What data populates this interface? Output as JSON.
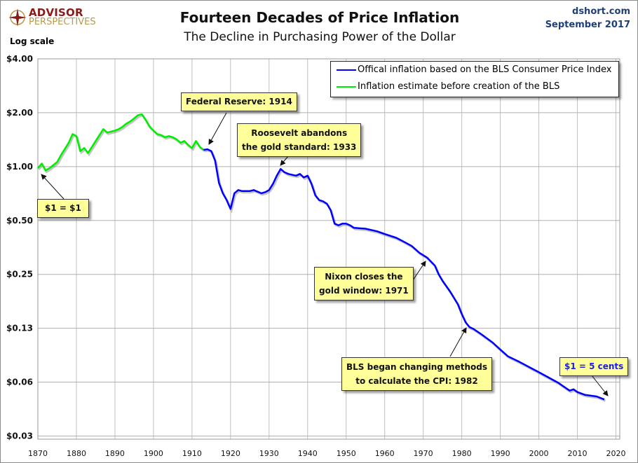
{
  "header": {
    "title": "Fourteen Decades of Price Inflation",
    "subtitle": "The Decline in Purchasing Power of the Dollar",
    "source": "dshort.com",
    "date": "September 2017",
    "logo_line1": "ADVISOR",
    "logo_line2": "PERSPECTIVES",
    "scale_note": "Log scale"
  },
  "chart_data": {
    "type": "line",
    "title": "Fourteen Decades of Price Inflation",
    "subtitle": "The Decline in Purchasing Power of the Dollar",
    "xlabel": "",
    "ylabel": "",
    "y_scale": "log",
    "xlim": [
      1870,
      2021
    ],
    "ylim": [
      0.03,
      4.0
    ],
    "x_ticks": [
      1870,
      1880,
      1890,
      1900,
      1910,
      1920,
      1930,
      1940,
      1950,
      1960,
      1970,
      1980,
      1990,
      2000,
      2010,
      2020
    ],
    "y_ticks": [
      {
        "value": 4,
        "label": "$4.00"
      },
      {
        "value": 2,
        "label": "$2.00"
      },
      {
        "value": 1,
        "label": "$1.00"
      },
      {
        "value": 0.5,
        "label": "$0.50"
      },
      {
        "value": 0.25,
        "label": "$0.25"
      },
      {
        "value": 0.125,
        "label": "$0.13"
      },
      {
        "value": 0.0625,
        "label": "$0.06"
      },
      {
        "value": 0.03125,
        "label": "$0.03"
      }
    ],
    "grid": true,
    "legend_position": "top-right",
    "series": [
      {
        "name": "Offical inflation based on the BLS Consumer Price Index",
        "color": "#0000ff",
        "x": [
          1913,
          1914,
          1915,
          1916,
          1917,
          1918,
          1919,
          1920,
          1921,
          1922,
          1923,
          1925,
          1926,
          1928,
          1929,
          1930,
          1931,
          1932,
          1933,
          1934,
          1935,
          1937,
          1938,
          1939,
          1940,
          1941,
          1942,
          1943,
          1944,
          1945,
          1946,
          1947,
          1948,
          1949,
          1950,
          1951,
          1952,
          1955,
          1958,
          1960,
          1963,
          1965,
          1967,
          1969,
          1971,
          1973,
          1974,
          1975,
          1977,
          1979,
          1980,
          1981,
          1982,
          1983,
          1985,
          1988,
          1990,
          1992,
          1995,
          2000,
          2005,
          2008,
          2009,
          2010,
          2012,
          2015,
          2017
        ],
        "y": [
          1.24,
          1.25,
          1.22,
          1.08,
          0.81,
          0.71,
          0.65,
          0.58,
          0.71,
          0.74,
          0.73,
          0.73,
          0.74,
          0.71,
          0.72,
          0.74,
          0.8,
          0.89,
          0.97,
          0.93,
          0.91,
          0.89,
          0.91,
          0.87,
          0.89,
          0.8,
          0.69,
          0.65,
          0.64,
          0.62,
          0.57,
          0.48,
          0.47,
          0.48,
          0.48,
          0.47,
          0.455,
          0.45,
          0.435,
          0.42,
          0.4,
          0.38,
          0.36,
          0.33,
          0.31,
          0.28,
          0.25,
          0.23,
          0.2,
          0.17,
          0.15,
          0.135,
          0.127,
          0.124,
          0.116,
          0.104,
          0.095,
          0.087,
          0.081,
          0.071,
          0.062,
          0.056,
          0.057,
          0.055,
          0.053,
          0.052,
          0.05
        ]
      },
      {
        "name": "Inflation estimate before creation of the BLS",
        "color": "#00ee00",
        "x": [
          1870,
          1871,
          1872,
          1873,
          1875,
          1876,
          1878,
          1879,
          1880,
          1881,
          1882,
          1883,
          1885,
          1887,
          1888,
          1890,
          1891,
          1892,
          1893,
          1894,
          1895,
          1896,
          1897,
          1898,
          1899,
          1900,
          1901,
          1902,
          1903,
          1904,
          1905,
          1906,
          1907,
          1908,
          1909,
          1910,
          1911,
          1912,
          1913
        ],
        "y": [
          0.98,
          1.04,
          0.95,
          0.98,
          1.06,
          1.16,
          1.36,
          1.52,
          1.48,
          1.22,
          1.27,
          1.19,
          1.39,
          1.62,
          1.55,
          1.59,
          1.62,
          1.67,
          1.74,
          1.79,
          1.86,
          1.94,
          1.96,
          1.82,
          1.67,
          1.59,
          1.52,
          1.5,
          1.46,
          1.48,
          1.46,
          1.42,
          1.36,
          1.39,
          1.32,
          1.27,
          1.39,
          1.29,
          1.24
        ]
      }
    ],
    "annotations": [
      {
        "text": "$1 = $1",
        "lines": [
          "$1 = $1"
        ]
      },
      {
        "lines": [
          "Federal Reserve: 1914"
        ]
      },
      {
        "lines": [
          "Roosevelt abandons",
          "the gold standard: 1933"
        ]
      },
      {
        "lines": [
          "Nixon closes the",
          "gold window: 1971"
        ]
      },
      {
        "lines": [
          "BLS began  changing methods",
          "to calculate the CPI: 1982"
        ]
      },
      {
        "lines": [
          "$1 = 5 cents"
        ]
      }
    ]
  }
}
